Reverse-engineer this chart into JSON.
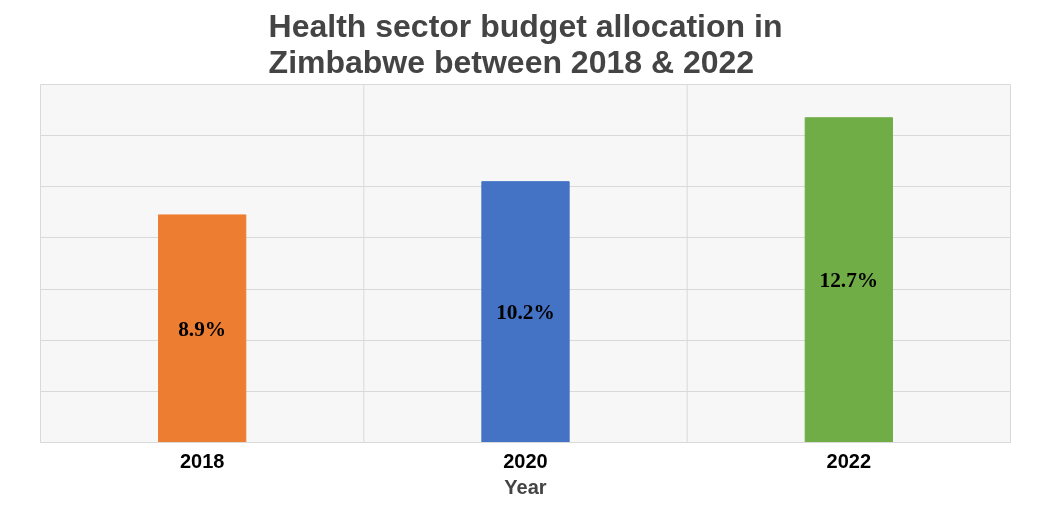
{
  "chart_data": {
    "type": "bar",
    "title": "Health sector budget allocation in\nZimbabwe between 2018 & 2022",
    "xlabel": "Year",
    "categories": [
      "2018",
      "2020",
      "2022"
    ],
    "values": [
      8.9,
      10.2,
      12.7
    ],
    "colors": [
      "#ed7d31",
      "#4472c4",
      "#70ad47"
    ],
    "value_labels": [
      "8.9%",
      "10.2%",
      "12.7%"
    ],
    "ylim": [
      0,
      14
    ],
    "yticks": [
      {
        "value": 0,
        "label": null
      },
      {
        "value": 2,
        "label": null
      },
      {
        "value": 4,
        "label": null
      },
      {
        "value": 6,
        "label": null
      },
      {
        "value": 8,
        "label": null
      },
      {
        "value": 10,
        "label": null
      },
      {
        "value": 12,
        "label": null
      },
      {
        "value": 14,
        "label": null
      }
    ],
    "grid": true,
    "tick_labels": "x"
  }
}
